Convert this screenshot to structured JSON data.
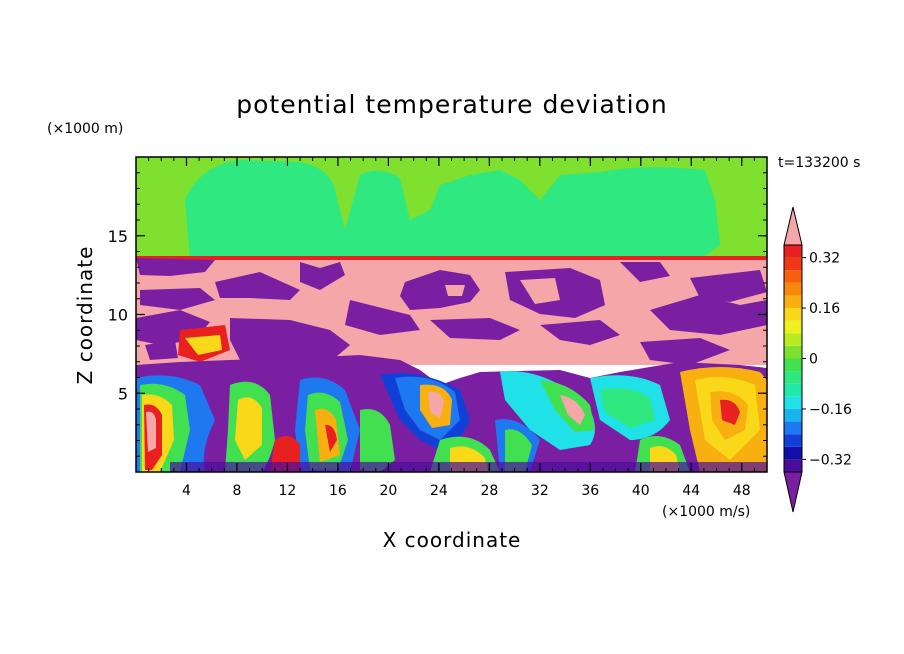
{
  "chart_data": {
    "type": "heatmap",
    "title": "potential temperature deviation",
    "xlabel": "X coordinate",
    "ylabel": "Z coordinate",
    "x_unit": "(×1000 m/s)",
    "y_unit": "(×1000 m)",
    "time_label": "t=133200 s",
    "xlim": [
      0,
      50
    ],
    "ylim": [
      0,
      20
    ],
    "x_ticks": [
      4,
      8,
      12,
      16,
      20,
      24,
      28,
      32,
      36,
      40,
      44,
      48
    ],
    "y_ticks": [
      5,
      10,
      15
    ],
    "colorbar": {
      "levels": [
        -0.4,
        -0.36,
        -0.32,
        -0.28,
        -0.24,
        -0.2,
        -0.16,
        -0.12,
        -0.08,
        -0.04,
        0,
        0.04,
        0.08,
        0.12,
        0.16,
        0.2,
        0.24,
        0.28,
        0.32,
        0.36,
        0.4
      ],
      "labels": [
        "0.32",
        "0.16",
        "0",
        "−0.16",
        "−0.32"
      ],
      "label_values": [
        0.32,
        0.16,
        0,
        -0.16,
        -0.32
      ],
      "colors": [
        "#7a1fa2",
        "#4b0d9c",
        "#1010a8",
        "#1040d8",
        "#1e78f0",
        "#18b4f0",
        "#20e0e8",
        "#20e8a8",
        "#30e880",
        "#40e050",
        "#80e030",
        "#b8ec20",
        "#f0f020",
        "#f8d818",
        "#f8b010",
        "#f88808",
        "#f86010",
        "#f03818",
        "#e82020",
        "#f4a6a8"
      ],
      "over_color": "#f4a6a8",
      "under_color": "#7a1fa2"
    }
  }
}
